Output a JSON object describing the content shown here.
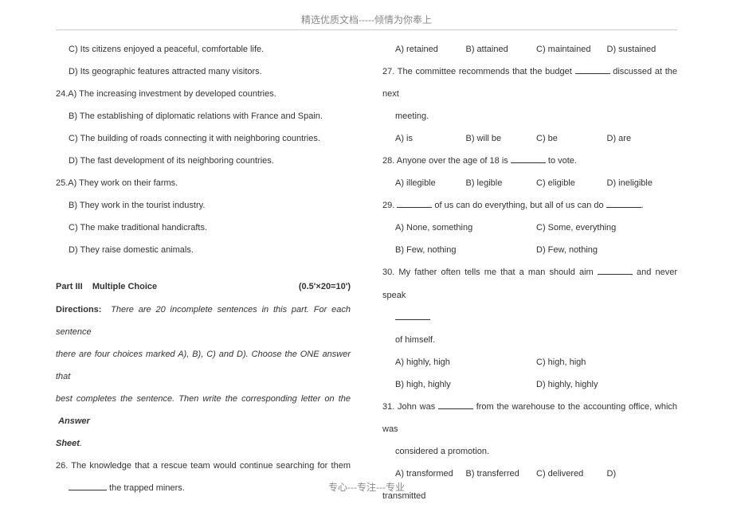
{
  "header": "精选优质文档-----倾情为你奉上",
  "footer": "专心---专注---专业",
  "left": {
    "q23c": "C) Its citizens enjoyed a peaceful, comfortable life.",
    "q23d": "D) Its geographic features attracted many visitors.",
    "q24lead": "24.A) The increasing investment by developed countries.",
    "q24b": "B) The establishing of diplomatic relations with France and Spain.",
    "q24c": "C) The building of roads connecting it with neighboring countries.",
    "q24d": "D) The fast development of its neighboring countries.",
    "q25lead": "25.A) They work on their farms.",
    "q25b": "B) They work in the tourist industry.",
    "q25c": "C) The make traditional handicrafts.",
    "q25d": "D) They raise domestic animals.",
    "part_title_a": "Part III",
    "part_title_b": "Multiple Choice",
    "part_points": "(0.5'×20=10')",
    "dir_label": "Directions:",
    "dir_text1": "There are 20 incomplete sentences in this part. For each sentence",
    "dir_text2": "there are four choices marked A), B), C) and D). Choose the ONE answer that",
    "dir_text3": "best completes the sentence. Then write the corresponding letter on the",
    "dir_answer": "Answer",
    "dir_sheet": "Sheet",
    "dir_period": ".",
    "q26a": "26. The knowledge that a rescue team would continue searching for them",
    "q26b": " the trapped miners."
  },
  "right": {
    "q26opts": {
      "a": "A) retained",
      "b": "B) attained",
      "c": "C) maintained",
      "d": "D) sustained"
    },
    "q27": "27. The committee recommends that the budget ",
    "q27tail": " discussed at the next",
    "q27b": "meeting.",
    "q27opts": {
      "a": "A) is",
      "b": "B) will be",
      "c": "C) be",
      "d": "D) are"
    },
    "q28a": "28. Anyone over the age of 18 is   ",
    "q28b": " to vote.",
    "q28opts": {
      "a": "A) illegible",
      "b": "B) legible",
      "c": "C) eligible",
      "d": "D) ineligible"
    },
    "q29a": "29. ",
    "q29b": " of us can do everything, but all of us can do ",
    "q29c": ".",
    "q29opts": {
      "a": "A) None, something",
      "b": "B) Few, nothing",
      "c": "C) Some, everything",
      "d": "D) Few, nothing"
    },
    "q30a": "30. My father often tells me that a man should aim ",
    "q30b": " and never speak",
    "q30c": "of himself.",
    "q30opts": {
      "a": "A) highly, high",
      "b": "B) high, highly",
      "c": "C) high, high",
      "d": "D) highly, highly"
    },
    "q31a": "31. John was ",
    "q31b": " from the warehouse to the accounting office, which was",
    "q31c": "considered a promotion.",
    "q31opts": {
      "a": "A) transformed",
      "b": "B) transferred",
      "c": "C) delivered",
      "d": "D)"
    },
    "q31last": "transmitted"
  }
}
